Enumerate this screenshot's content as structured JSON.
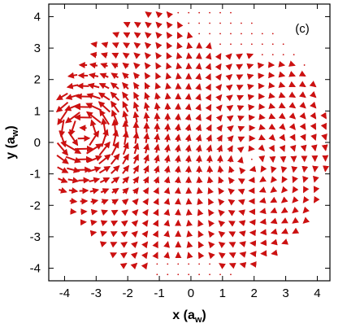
{
  "chart_data": {
    "type": "quiver",
    "panel_label": "(c)",
    "xlabel": "x (a",
    "xlabel_sub": "w",
    "xlabel_close": ")",
    "ylabel": "y (a",
    "ylabel_sub": "w",
    "ylabel_close": ")",
    "xlim": [
      -4.5,
      4.4
    ],
    "ylim": [
      -4.4,
      4.4
    ],
    "xticks": [
      -4,
      -3,
      -2,
      -1,
      0,
      1,
      2,
      3,
      4
    ],
    "yticks": [
      -4,
      -3,
      -2,
      -1,
      0,
      1,
      2,
      3,
      4
    ],
    "grid": false,
    "grid_spacing": 0.333,
    "arrow_color": "#cc1111",
    "field": {
      "description_of_structure": "tangential vortex field",
      "vortices": [
        {
          "x": -3.4,
          "y": 0.35,
          "strength": 1.0,
          "core": 0.6,
          "sense": "counterclockwise"
        },
        {
          "x": 1.8,
          "y": -0.6,
          "strength": 0.45,
          "core": 0.9,
          "sense": "clockwise"
        }
      ],
      "domain_radius": 4.4
    }
  }
}
